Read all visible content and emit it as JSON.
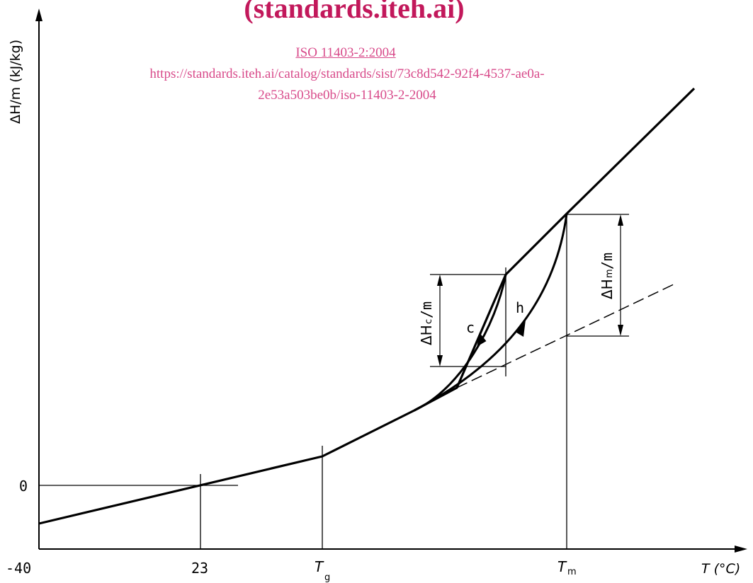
{
  "watermark": {
    "title": "(standards.iteh.ai)",
    "iso": "ISO 11403-2:2004",
    "url_line1": "https://standards.iteh.ai/catalog/standards/sist/73c8d542-92f4-4537-ae0a-",
    "url_line2": "2e53a503be0b/iso-11403-2-2004"
  },
  "axes": {
    "y_label": "ΔH/m (kJ/kg)",
    "x_label": "T (°C)",
    "y_tick_zero": "0",
    "x_ticks": [
      "-40",
      "23",
      "Tg",
      "Tm"
    ]
  },
  "annotations": {
    "curve_c": "c",
    "curve_h": "h",
    "dHc": "ΔHc/m",
    "dHm": "ΔHm/m"
  }
}
